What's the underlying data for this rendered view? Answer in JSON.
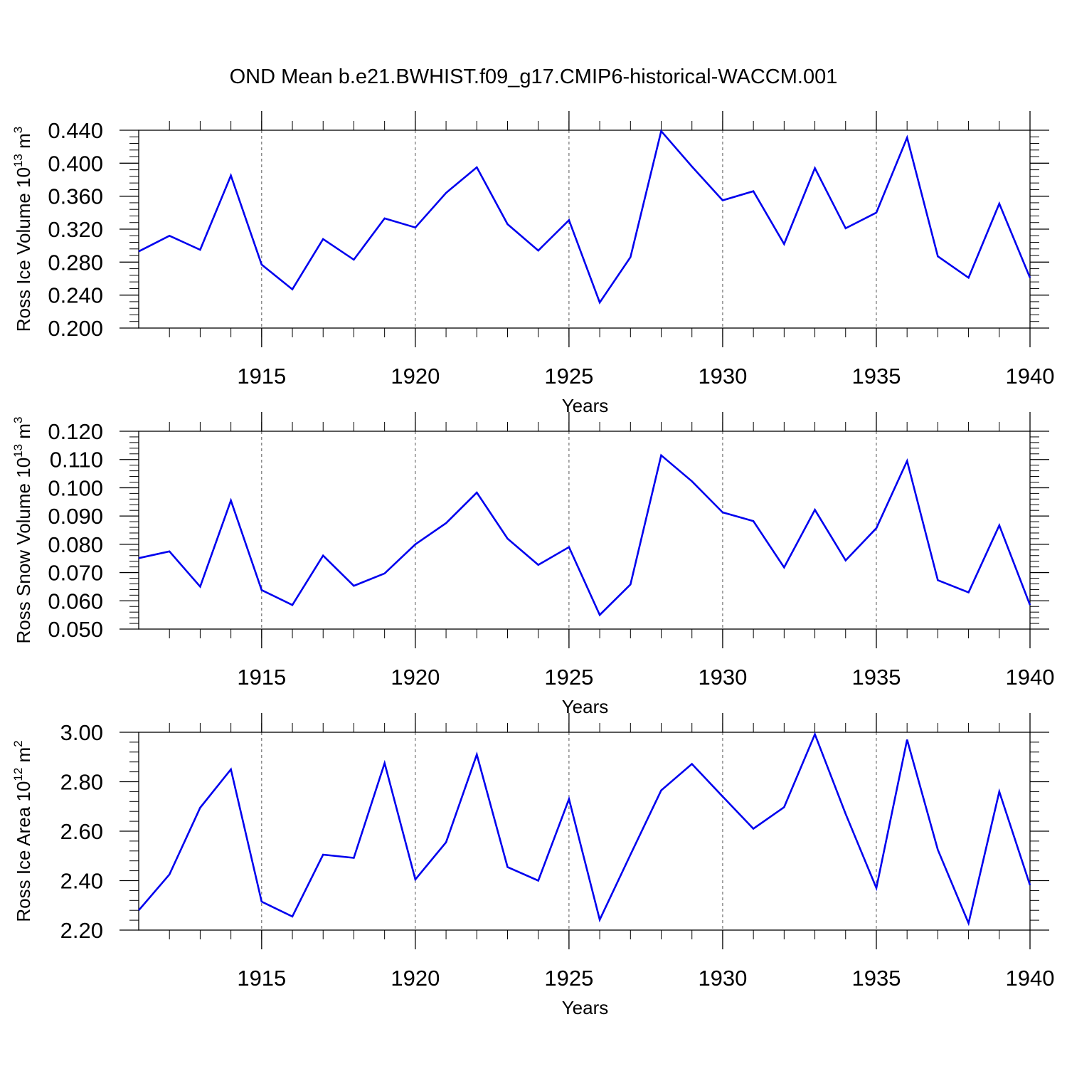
{
  "figure": {
    "title": "OND Mean b.e21.BWHIST.f09_g17.CMIP6-historical-WACCM.001",
    "line_color": "#0000ee"
  },
  "chart_data": [
    {
      "type": "line",
      "xlabel": "Years",
      "ylabel": "Ross Ice Volume 10",
      "ylabel_exp": "13",
      "ylabel_unit": " m",
      "ylabel_unit_exp": "3",
      "xlim": [
        1911,
        1940
      ],
      "ylim": [
        0.2,
        0.44
      ],
      "xticks": [
        "1915",
        "1920",
        "1925",
        "1930",
        "1935",
        "1940"
      ],
      "yticks": [
        "0.200",
        "0.240",
        "0.280",
        "0.320",
        "0.360",
        "0.400",
        "0.440"
      ],
      "x": [
        1911,
        1912,
        1913,
        1914,
        1915,
        1916,
        1917,
        1918,
        1919,
        1920,
        1921,
        1922,
        1923,
        1924,
        1925,
        1926,
        1927,
        1928,
        1929,
        1930,
        1931,
        1932,
        1933,
        1934,
        1935,
        1936,
        1937,
        1938,
        1939,
        1940
      ],
      "values": [
        0.293,
        0.312,
        0.295,
        0.385,
        0.277,
        0.247,
        0.308,
        0.283,
        0.333,
        0.322,
        0.364,
        0.395,
        0.326,
        0.294,
        0.331,
        0.231,
        0.286,
        0.439,
        0.396,
        0.355,
        0.366,
        0.302,
        0.394,
        0.321,
        0.34,
        0.431,
        0.287,
        0.261,
        0.351,
        0.261
      ]
    },
    {
      "type": "line",
      "xlabel": "Years",
      "ylabel": "Ross Snow Volume 10",
      "ylabel_exp": "13",
      "ylabel_unit": " m",
      "ylabel_unit_exp": "3",
      "xlim": [
        1911,
        1940
      ],
      "ylim": [
        0.05,
        0.12
      ],
      "xticks": [
        "1915",
        "1920",
        "1925",
        "1930",
        "1935",
        "1940"
      ],
      "yticks": [
        "0.050",
        "0.060",
        "0.070",
        "0.080",
        "0.090",
        "0.100",
        "0.110",
        "0.120"
      ],
      "x": [
        1911,
        1912,
        1913,
        1914,
        1915,
        1916,
        1917,
        1918,
        1919,
        1920,
        1921,
        1922,
        1923,
        1924,
        1925,
        1926,
        1927,
        1928,
        1929,
        1930,
        1931,
        1932,
        1933,
        1934,
        1935,
        1936,
        1937,
        1938,
        1939,
        1940
      ],
      "values": [
        0.0751,
        0.0775,
        0.065,
        0.0955,
        0.0638,
        0.0585,
        0.076,
        0.0653,
        0.0697,
        0.08,
        0.0875,
        0.0983,
        0.082,
        0.0727,
        0.079,
        0.055,
        0.0658,
        0.1115,
        0.1023,
        0.0913,
        0.0882,
        0.0718,
        0.0922,
        0.0743,
        0.0857,
        0.1095,
        0.0673,
        0.063,
        0.0867,
        0.0585
      ]
    },
    {
      "type": "line",
      "xlabel": "Years",
      "ylabel": "Ross Ice Area 10",
      "ylabel_exp": "12",
      "ylabel_unit": " m",
      "ylabel_unit_exp": "2",
      "xlim": [
        1911,
        1940
      ],
      "ylim": [
        2.2,
        3.0
      ],
      "xticks": [
        "1915",
        "1920",
        "1925",
        "1930",
        "1935",
        "1940"
      ],
      "yticks": [
        "2.20",
        "2.40",
        "2.60",
        "2.80",
        "3.00"
      ],
      "x": [
        1911,
        1912,
        1913,
        1914,
        1915,
        1916,
        1917,
        1918,
        1919,
        1920,
        1921,
        1922,
        1923,
        1924,
        1925,
        1926,
        1927,
        1928,
        1929,
        1930,
        1931,
        1932,
        1933,
        1934,
        1935,
        1936,
        1937,
        1938,
        1939,
        1940
      ],
      "values": [
        2.28,
        2.425,
        2.695,
        2.85,
        2.315,
        2.255,
        2.505,
        2.492,
        2.875,
        2.405,
        2.555,
        2.91,
        2.455,
        2.4,
        2.73,
        2.242,
        2.505,
        2.765,
        2.872,
        2.74,
        2.61,
        2.697,
        2.992,
        2.67,
        2.37,
        2.97,
        2.525,
        2.228,
        2.76,
        2.382
      ]
    }
  ]
}
